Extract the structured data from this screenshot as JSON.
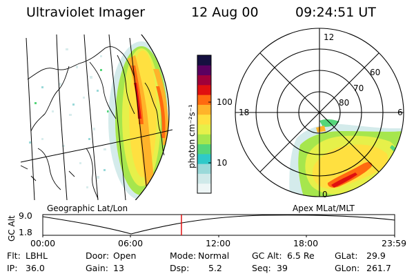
{
  "header": {
    "instrument": "Ultraviolet Imager",
    "date": "12 Aug 00",
    "time": "09:24:51 UT"
  },
  "left_panel": {
    "caption": "Geographic Lat/Lon"
  },
  "colorbar": {
    "unit_label": "photon cm⁻²s⁻¹",
    "ticks": [
      {
        "value": 100,
        "label": "100"
      },
      {
        "value": 10,
        "label": "10"
      }
    ],
    "colors": [
      "#eef6f6",
      "#cfe9e9",
      "#9ad9d9",
      "#2fc9c9",
      "#55d67a",
      "#a6e64d",
      "#e6f04a",
      "#ffe040",
      "#ffb32a",
      "#ff6a10",
      "#e01010",
      "#a0003a",
      "#5a0060",
      "#151040"
    ]
  },
  "right_panel": {
    "caption": "Apex MLat/MLT",
    "mlt_labels": {
      "top": "12",
      "left": "18",
      "right": "6",
      "bottom": "0"
    },
    "lat_labels": [
      "60",
      "70",
      "80"
    ]
  },
  "altitude_plot": {
    "ylabel": "GC Alt",
    "yticks": [
      "9.0",
      "1.8"
    ],
    "xticks": [
      "00:00",
      "06:00",
      "12:00",
      "18:00",
      "23:59"
    ],
    "current_time_fraction": 0.394
  },
  "metadata": [
    [
      {
        "key": "Flt:",
        "value": "LBHL"
      },
      {
        "key": "Door:",
        "value": "Open"
      },
      {
        "key": "Mode:",
        "value": "Normal"
      },
      {
        "key": "GC Alt:",
        "value": "6.5 Re"
      },
      {
        "key": "GLat:",
        "value": "29.9"
      }
    ],
    [
      {
        "key": "IP:",
        "value": "36.0"
      },
      {
        "key": "Gain:",
        "value": "13"
      },
      {
        "key": "Dsp:",
        "value": "5.2"
      },
      {
        "key": "Seq:",
        "value": "39"
      },
      {
        "key": "GLon:",
        "value": "261.7"
      }
    ]
  ],
  "colors": {
    "marker": "#e01010"
  }
}
